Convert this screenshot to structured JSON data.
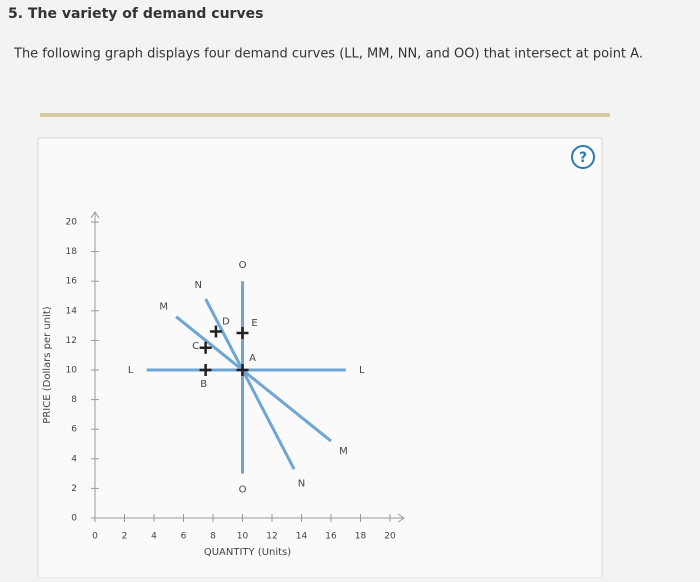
{
  "header": {
    "title": "5. The variety of demand curves",
    "text": "The following graph displays four demand curves (LL, MM, NN, and OO) that intersect at point A."
  },
  "chart_data": {
    "type": "line",
    "help": "?",
    "xlabel": "QUANTITY (Units)",
    "ylabel": "PRICE (Dollars per unit)",
    "xlim": [
      0,
      20
    ],
    "ylim": [
      0,
      20
    ],
    "xticks": [
      0,
      2,
      4,
      6,
      8,
      10,
      12,
      14,
      16,
      18,
      20
    ],
    "yticks": [
      0,
      2,
      4,
      6,
      8,
      10,
      12,
      14,
      16,
      18,
      20
    ],
    "series": [
      {
        "name": "L",
        "color": "#6fa5d4",
        "x": [
          3.5,
          17
        ],
        "y": [
          10,
          10
        ]
      },
      {
        "name": "M",
        "color": "#6fa5d4",
        "x": [
          5.5,
          16
        ],
        "y": [
          13.6,
          5.2
        ]
      },
      {
        "name": "N",
        "color": "#6fa5d4",
        "x": [
          7.5,
          13.5
        ],
        "y": [
          14.8,
          3.3
        ]
      },
      {
        "name": "O",
        "color": "#6fa5d4",
        "x": [
          10,
          10
        ],
        "y": [
          3,
          16
        ]
      }
    ],
    "points": [
      {
        "label": "A",
        "x": 10,
        "y": 10
      },
      {
        "label": "B",
        "x": 7.5,
        "y": 10
      },
      {
        "label": "C",
        "x": 7.5,
        "y": 11.5
      },
      {
        "label": "D",
        "x": 8.2,
        "y": 12.6
      },
      {
        "label": "E",
        "x": 10,
        "y": 12.5
      }
    ]
  }
}
